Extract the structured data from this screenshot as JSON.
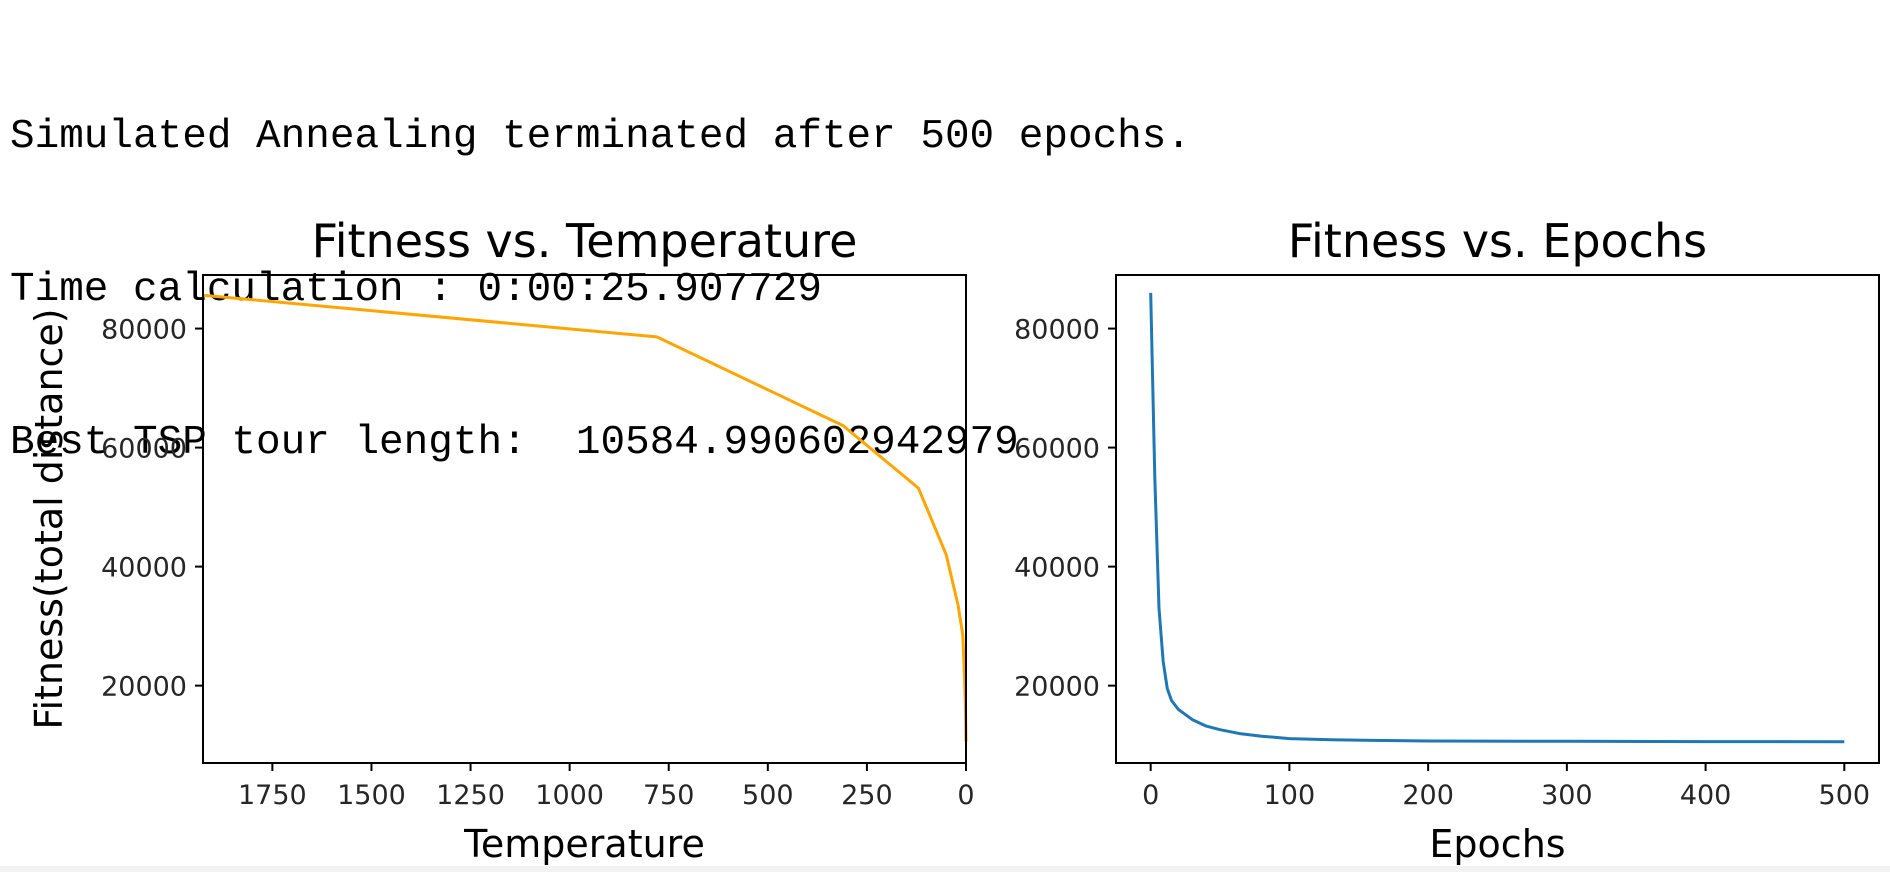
{
  "console": {
    "lines": [
      "Simulated Annealing terminated after 500 epochs.",
      "Time calculation : 0:00:25.907729",
      "Best TSP tour length:  10584.990602942979"
    ]
  },
  "colors": {
    "temperature_line": "#FFA500",
    "epochs_line": "#1F77B4",
    "axis": "#000000",
    "text": "#262626"
  },
  "chart_data": [
    {
      "type": "line",
      "title": "Fitness vs. Temperature",
      "xlabel": "Temperature",
      "ylabel": "Fitness(total distance)",
      "x_inverted": true,
      "xlim": [
        1925,
        0
      ],
      "ylim": [
        7000,
        89000
      ],
      "xticks": [
        1750,
        1500,
        1250,
        1000,
        750,
        500,
        250,
        0
      ],
      "xtick_labels": [
        "1750",
        "1500",
        "1250",
        "1000",
        "750",
        "500",
        "250",
        "0"
      ],
      "yticks": [
        20000,
        40000,
        60000,
        80000
      ],
      "ytick_labels": [
        "20000",
        "40000",
        "60000",
        "80000"
      ],
      "series": [
        {
          "color": "#FFA500",
          "x": [
            1925,
            780,
            310,
            120,
            50,
            20,
            8,
            3,
            1,
            0.3,
            0
          ],
          "y": [
            85600,
            78600,
            63700,
            53200,
            42000,
            33500,
            28500,
            20000,
            15000,
            11500,
            10585
          ]
        }
      ]
    },
    {
      "type": "line",
      "title": "Fitness vs. Epochs",
      "xlabel": "Epochs",
      "ylabel": "",
      "xlim": [
        -25,
        525
      ],
      "ylim": [
        7000,
        89000
      ],
      "xticks": [
        0,
        100,
        200,
        300,
        400,
        500
      ],
      "xtick_labels": [
        "0",
        "100",
        "200",
        "300",
        "400",
        "500"
      ],
      "yticks": [
        20000,
        40000,
        60000,
        80000
      ],
      "ytick_labels": [
        "20000",
        "40000",
        "60000",
        "80000"
      ],
      "series": [
        {
          "color": "#1F77B4",
          "x": [
            0,
            3,
            6,
            9,
            12,
            15,
            20,
            30,
            40,
            50,
            65,
            80,
            100,
            130,
            160,
            200,
            300,
            400,
            500
          ],
          "y": [
            86000,
            55000,
            33000,
            24000,
            19500,
            17500,
            16000,
            14300,
            13200,
            12600,
            11900,
            11500,
            11100,
            10900,
            10800,
            10700,
            10650,
            10600,
            10585
          ]
        }
      ]
    }
  ]
}
